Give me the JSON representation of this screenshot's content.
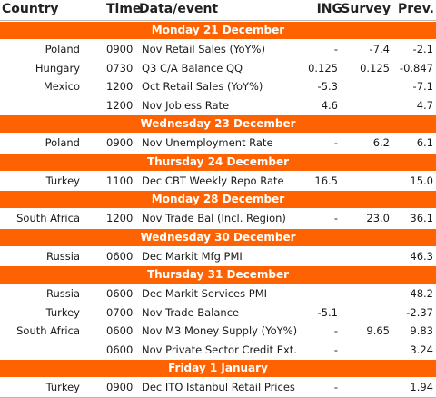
{
  "header": {
    "country": "Country",
    "time": "Time",
    "event": "Data/event",
    "ing": "ING",
    "survey": "Survey",
    "prev": "Prev."
  },
  "sections": [
    {
      "date": "Monday 21 December",
      "rows": [
        {
          "country": "Poland",
          "time": "0900",
          "event": "Nov Retail Sales (YoY%)",
          "ing": "-",
          "survey": "-7.4",
          "prev": "-2.1"
        },
        {
          "country": "Hungary",
          "time": "0730",
          "event": "Q3 C/A Balance QQ",
          "ing": "0.125",
          "survey": "0.125",
          "prev": "-0.847"
        },
        {
          "country": "Mexico",
          "time": "1200",
          "event": "Oct Retail Sales (YoY%)",
          "ing": "-5.3",
          "survey": "",
          "prev": "-7.1"
        },
        {
          "country": "",
          "time": "1200",
          "event": "Nov Jobless Rate",
          "ing": "4.6",
          "survey": "",
          "prev": "4.7"
        }
      ]
    },
    {
      "date": "Wednesday 23 December",
      "rows": [
        {
          "country": "Poland",
          "time": "0900",
          "event": "Nov Unemployment Rate",
          "ing": "-",
          "survey": "6.2",
          "prev": "6.1"
        }
      ]
    },
    {
      "date": "Thursday 24 December",
      "rows": [
        {
          "country": "Turkey",
          "time": "1100",
          "event": "Dec CBT Weekly Repo Rate",
          "ing": "16.5",
          "survey": "",
          "prev": "15.0"
        }
      ]
    },
    {
      "date": "Monday 28 December",
      "rows": [
        {
          "country": "South Africa",
          "time": "1200",
          "event": "Nov Trade Bal (Incl. Region)",
          "ing": "-",
          "survey": "23.0",
          "prev": "36.1"
        }
      ]
    },
    {
      "date": "Wednesday 30 December",
      "rows": [
        {
          "country": "Russia",
          "time": "0600",
          "event": "Dec Markit Mfg PMI",
          "ing": "",
          "survey": "",
          "prev": "46.3"
        }
      ]
    },
    {
      "date": "Thursday 31 December",
      "rows": [
        {
          "country": "Russia",
          "time": "0600",
          "event": "Dec Markit Services PMI",
          "ing": "",
          "survey": "",
          "prev": "48.2"
        },
        {
          "country": "Turkey",
          "time": "0700",
          "event": "Nov Trade Balance",
          "ing": "-5.1",
          "survey": "",
          "prev": "-2.37"
        },
        {
          "country": "South Africa",
          "time": "0600",
          "event": "Nov M3 Money Supply (YoY%)",
          "ing": "-",
          "survey": "9.65",
          "prev": "9.83"
        },
        {
          "country": "",
          "time": "0600",
          "event": "Nov Private Sector Credit Ext.",
          "ing": "-",
          "survey": "",
          "prev": "3.24"
        }
      ]
    },
    {
      "date": "Friday 1 January",
      "rows": [
        {
          "country": "Turkey",
          "time": "0900",
          "event": "Dec ITO Istanbul Retail Prices",
          "ing": "-",
          "survey": "",
          "prev": "1.94"
        }
      ]
    }
  ]
}
